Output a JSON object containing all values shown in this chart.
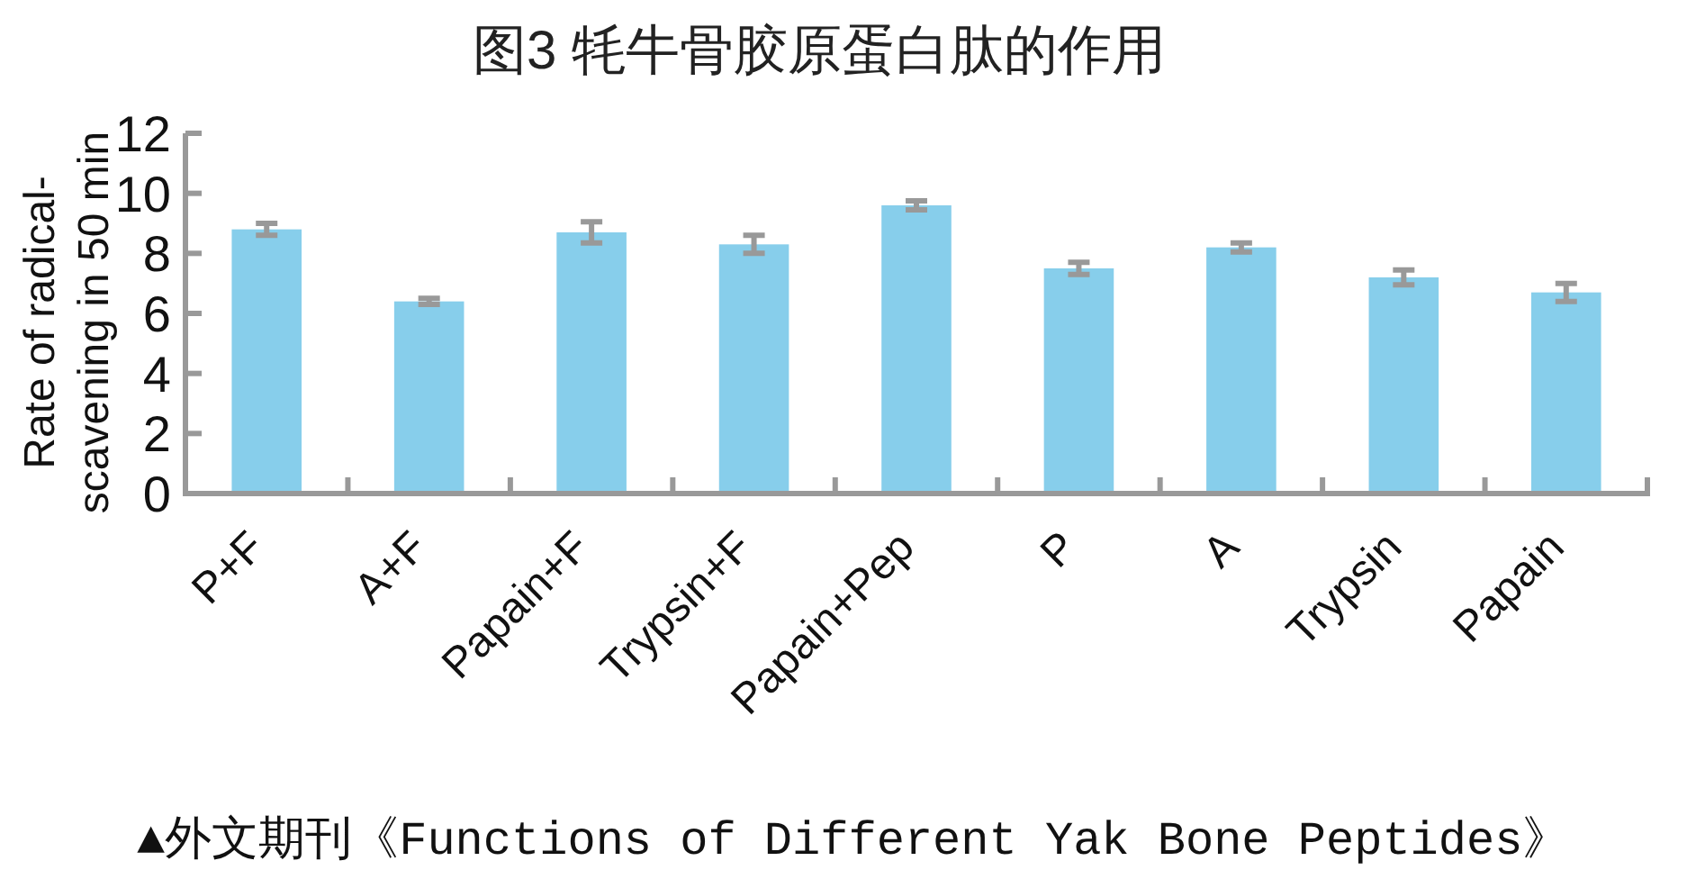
{
  "chart_data": {
    "type": "bar",
    "title": "图3 牦牛骨胶原蛋白肽的作用",
    "ylabel": "Rate of radical-scavening in 50 min",
    "categories": [
      "P+F",
      "A+F",
      "Papain+F",
      "Trypsin+F",
      "Papain+Pep",
      "P",
      "A",
      "Trypsin",
      "Papain"
    ],
    "values": [
      8.8,
      6.4,
      8.7,
      8.3,
      9.6,
      7.5,
      8.2,
      7.2,
      6.7
    ],
    "errors": [
      0.2,
      0.1,
      0.35,
      0.3,
      0.15,
      0.2,
      0.15,
      0.25,
      0.3
    ],
    "color": "#87ceeb",
    "ylim": [
      0,
      12
    ],
    "yticks": [
      0,
      2,
      4,
      6,
      8,
      10,
      12
    ],
    "annotations": [
      "▲外文期刊《Functions of Different Yak Bone Peptides》"
    ]
  }
}
